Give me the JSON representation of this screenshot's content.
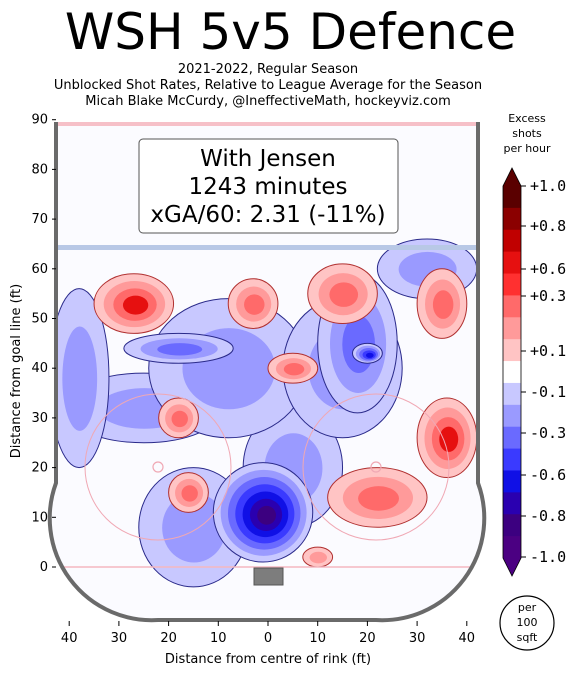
{
  "header": {
    "title": "WSH 5v5 Defence",
    "subtitle_1": "2021-2022, Regular Season",
    "subtitle_2": "Unblocked Shot Rates, Relative to League Average for the Season",
    "subtitle_3": "Micah Blake McCurdy, @IneffectiveMath, hockeyviz.com"
  },
  "infobox": {
    "line1": "With Jensen",
    "line2": "1243 minutes",
    "line3": "xGA/60: 2.31 (-11%)"
  },
  "per_area_badge": [
    "per",
    "100",
    "sqft"
  ],
  "colorbar": {
    "title": [
      "Excess",
      "shots",
      "per hour"
    ],
    "tick_labels": [
      "+1.0",
      "+0.8",
      "+0.6",
      "+0.3",
      "+0.1",
      "-0.1",
      "-0.3",
      "-0.6",
      "-0.8",
      "-1.0"
    ],
    "colors": [
      "#5a0000",
      "#8b0000",
      "#c00000",
      "#e61010",
      "#ff3030",
      "#ff6a6a",
      "#ff9a9a",
      "#ffc4c4",
      "#ffffff",
      "#c8c8ff",
      "#9a9aff",
      "#6a6aff",
      "#3a3aff",
      "#1010e6",
      "#2a00b0",
      "#3c0080",
      "#4b0082"
    ]
  },
  "chart_data": {
    "type": "heatmap",
    "xlabel": "Distance from centre of rink (ft)",
    "ylabel": "Distance from goal line (ft)",
    "xlim": [
      -42.5,
      42.5
    ],
    "ylim": [
      -11,
      90
    ],
    "xticks": [
      40,
      30,
      20,
      10,
      0,
      10,
      20,
      30,
      40
    ],
    "yticks": [
      0,
      10,
      20,
      30,
      40,
      50,
      60,
      70,
      80,
      90
    ],
    "legend": "right colorbar",
    "regions": [
      {
        "sign": "negative",
        "level": 0.15,
        "center": [
          -15,
          8
        ],
        "radius": [
          11,
          12
        ]
      },
      {
        "sign": "negative",
        "level": 0.15,
        "center": [
          5,
          20
        ],
        "radius": [
          10,
          12
        ]
      },
      {
        "sign": "negative",
        "level": 0.15,
        "center": [
          -25,
          32
        ],
        "radius": [
          16,
          7
        ]
      },
      {
        "sign": "negative",
        "level": 0.15,
        "center": [
          -8,
          40
        ],
        "radius": [
          16,
          14
        ]
      },
      {
        "sign": "negative",
        "level": 0.15,
        "center": [
          15,
          40
        ],
        "radius": [
          12,
          14
        ]
      },
      {
        "sign": "negative",
        "level": 0.15,
        "center": [
          32,
          60
        ],
        "radius": [
          10,
          6
        ]
      },
      {
        "sign": "negative",
        "level": 0.15,
        "center": [
          -38,
          38
        ],
        "radius": [
          6,
          18
        ]
      },
      {
        "sign": "negative",
        "level": 1.0,
        "center": [
          -1,
          11
        ],
        "radius": [
          10,
          10
        ]
      },
      {
        "sign": "negative",
        "level": 0.3,
        "center": [
          18,
          45
        ],
        "radius": [
          8,
          14
        ]
      },
      {
        "sign": "negative",
        "level": 0.3,
        "center": [
          -18,
          44
        ],
        "radius": [
          11,
          3
        ]
      },
      {
        "sign": "negative",
        "level": 0.6,
        "center": [
          20,
          43
        ],
        "radius": [
          3,
          2
        ]
      },
      {
        "sign": "positive",
        "level": 0.6,
        "center": [
          -27,
          53
        ],
        "radius": [
          8,
          6
        ]
      },
      {
        "sign": "positive",
        "level": 0.3,
        "center": [
          -3,
          53
        ],
        "radius": [
          5,
          5
        ]
      },
      {
        "sign": "positive",
        "level": 0.3,
        "center": [
          15,
          55
        ],
        "radius": [
          7,
          6
        ]
      },
      {
        "sign": "positive",
        "level": 0.3,
        "center": [
          35,
          53
        ],
        "radius": [
          5,
          7
        ]
      },
      {
        "sign": "positive",
        "level": 0.3,
        "center": [
          5,
          40
        ],
        "radius": [
          5,
          3
        ]
      },
      {
        "sign": "positive",
        "level": 0.3,
        "center": [
          -18,
          30
        ],
        "radius": [
          4,
          4
        ]
      },
      {
        "sign": "positive",
        "level": 0.3,
        "center": [
          -16,
          15
        ],
        "radius": [
          4,
          4
        ]
      },
      {
        "sign": "positive",
        "level": 0.6,
        "center": [
          36,
          26
        ],
        "radius": [
          6,
          8
        ]
      },
      {
        "sign": "positive",
        "level": 0.3,
        "center": [
          22,
          14
        ],
        "radius": [
          10,
          6
        ]
      },
      {
        "sign": "positive",
        "level": 0.1,
        "center": [
          10,
          2
        ],
        "radius": [
          3,
          2
        ]
      }
    ]
  }
}
